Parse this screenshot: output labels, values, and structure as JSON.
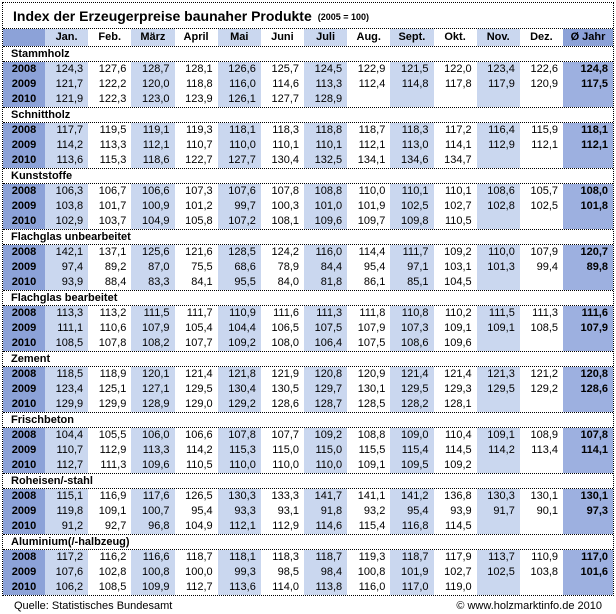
{
  "header": {
    "title": "Index der Erzeugerpreise baunaher Produkte",
    "subtitle": "(2005 = 100)"
  },
  "colors": {
    "medium_blue": "#8ca2d8",
    "light_blue": "#cad7ef",
    "avg_blue": "#9db0e0",
    "border": "#000000"
  },
  "chart_data": {
    "type": "table",
    "title": "Index der Erzeugerpreise baunaher Produkte (2005 = 100)",
    "columns": [
      "Jan.",
      "Feb.",
      "März",
      "April",
      "Mai",
      "Juni",
      "Juli",
      "Aug.",
      "Sept.",
      "Okt.",
      "Nov.",
      "Dez.",
      "Ø Jahr"
    ],
    "row_groups": [
      {
        "name": "Stammholz",
        "rows": [
          {
            "year": "2008",
            "values": [
              "124,3",
              "127,6",
              "128,7",
              "128,1",
              "126,6",
              "125,7",
              "124,5",
              "122,9",
              "121,5",
              "122,0",
              "123,4",
              "122,6"
            ],
            "avg": "124,8"
          },
          {
            "year": "2009",
            "values": [
              "121,7",
              "122,2",
              "120,0",
              "118,8",
              "116,0",
              "114,6",
              "113,3",
              "112,4",
              "114,8",
              "117,8",
              "117,9",
              "120,9"
            ],
            "avg": "117,5"
          },
          {
            "year": "2010",
            "values": [
              "121,9",
              "122,3",
              "123,0",
              "123,9",
              "126,1",
              "127,7",
              "128,9",
              "",
              "",
              "",
              "",
              ""
            ],
            "avg": ""
          }
        ]
      },
      {
        "name": "Schnittholz",
        "rows": [
          {
            "year": "2008",
            "values": [
              "117,7",
              "119,5",
              "119,1",
              "119,3",
              "118,1",
              "118,3",
              "118,8",
              "118,7",
              "118,3",
              "117,2",
              "116,4",
              "115,9"
            ],
            "avg": "118,1"
          },
          {
            "year": "2009",
            "values": [
              "114,2",
              "113,3",
              "112,1",
              "110,7",
              "110,0",
              "110,1",
              "110,1",
              "112,1",
              "113,0",
              "114,1",
              "112,9",
              "112,1"
            ],
            "avg": "112,1"
          },
          {
            "year": "2010",
            "values": [
              "113,6",
              "115,3",
              "118,6",
              "122,7",
              "127,7",
              "130,4",
              "132,5",
              "134,1",
              "134,6",
              "134,7",
              "",
              ""
            ],
            "avg": ""
          }
        ]
      },
      {
        "name": "Kunststoffe",
        "rows": [
          {
            "year": "2008",
            "values": [
              "106,3",
              "106,7",
              "106,6",
              "107,3",
              "107,6",
              "107,8",
              "108,8",
              "110,0",
              "110,1",
              "110,1",
              "108,6",
              "105,7"
            ],
            "avg": "108,0"
          },
          {
            "year": "2009",
            "values": [
              "103,8",
              "101,7",
              "100,9",
              "101,2",
              "99,7",
              "100,3",
              "101,0",
              "101,9",
              "102,5",
              "102,7",
              "102,8",
              "102,5"
            ],
            "avg": "101,8"
          },
          {
            "year": "2010",
            "values": [
              "102,9",
              "103,7",
              "104,9",
              "105,8",
              "107,2",
              "108,1",
              "109,6",
              "109,7",
              "109,8",
              "110,5",
              "",
              ""
            ],
            "avg": ""
          }
        ]
      },
      {
        "name": "Flachglas unbearbeitet",
        "rows": [
          {
            "year": "2008",
            "values": [
              "142,1",
              "137,1",
              "125,6",
              "121,6",
              "128,5",
              "124,2",
              "116,0",
              "114,4",
              "111,7",
              "109,2",
              "110,0",
              "107,9"
            ],
            "avg": "120,7"
          },
          {
            "year": "2009",
            "values": [
              "97,4",
              "89,2",
              "87,0",
              "75,5",
              "68,6",
              "78,9",
              "84,4",
              "95,4",
              "97,1",
              "103,1",
              "101,3",
              "99,4"
            ],
            "avg": "89,8"
          },
          {
            "year": "2010",
            "values": [
              "93,9",
              "88,4",
              "83,3",
              "84,1",
              "95,5",
              "84,0",
              "81,8",
              "86,1",
              "85,1",
              "104,5",
              "",
              ""
            ],
            "avg": ""
          }
        ]
      },
      {
        "name": "Flachglas bearbeitet",
        "rows": [
          {
            "year": "2008",
            "values": [
              "113,3",
              "113,2",
              "111,5",
              "111,7",
              "110,9",
              "111,6",
              "111,3",
              "111,8",
              "110,8",
              "110,2",
              "111,5",
              "111,3"
            ],
            "avg": "111,6"
          },
          {
            "year": "2009",
            "values": [
              "111,1",
              "110,6",
              "107,9",
              "105,4",
              "104,4",
              "106,5",
              "107,5",
              "107,9",
              "107,3",
              "109,1",
              "109,1",
              "108,5"
            ],
            "avg": "107,9"
          },
          {
            "year": "2010",
            "values": [
              "108,5",
              "107,8",
              "108,2",
              "107,7",
              "109,2",
              "108,0",
              "106,4",
              "107,5",
              "108,6",
              "109,6",
              "",
              ""
            ],
            "avg": ""
          }
        ]
      },
      {
        "name": "Zement",
        "rows": [
          {
            "year": "2008",
            "values": [
              "118,5",
              "118,9",
              "120,1",
              "121,4",
              "121,8",
              "121,9",
              "120,8",
              "120,9",
              "121,4",
              "121,4",
              "121,3",
              "121,2"
            ],
            "avg": "120,8"
          },
          {
            "year": "2009",
            "values": [
              "123,4",
              "125,1",
              "127,1",
              "129,5",
              "130,4",
              "130,5",
              "129,7",
              "130,1",
              "129,5",
              "129,3",
              "129,5",
              "129,2"
            ],
            "avg": "128,6"
          },
          {
            "year": "2010",
            "values": [
              "129,9",
              "129,9",
              "128,9",
              "129,0",
              "129,2",
              "128,6",
              "128,7",
              "128,5",
              "128,2",
              "128,1",
              "",
              ""
            ],
            "avg": ""
          }
        ]
      },
      {
        "name": "Frischbeton",
        "rows": [
          {
            "year": "2008",
            "values": [
              "104,4",
              "105,5",
              "106,0",
              "106,6",
              "107,8",
              "107,7",
              "109,2",
              "108,8",
              "109,0",
              "110,4",
              "109,1",
              "108,9"
            ],
            "avg": "107,8"
          },
          {
            "year": "2009",
            "values": [
              "110,7",
              "112,9",
              "113,3",
              "114,2",
              "115,3",
              "115,0",
              "115,0",
              "115,5",
              "115,4",
              "114,5",
              "114,2",
              "113,4"
            ],
            "avg": "114,1"
          },
          {
            "year": "2010",
            "values": [
              "112,7",
              "111,3",
              "109,6",
              "110,5",
              "110,0",
              "110,0",
              "110,0",
              "109,1",
              "109,5",
              "109,2",
              "",
              ""
            ],
            "avg": ""
          }
        ]
      },
      {
        "name": "Roheisen/-stahl",
        "rows": [
          {
            "year": "2008",
            "values": [
              "115,1",
              "116,9",
              "117,6",
              "126,5",
              "130,3",
              "133,3",
              "141,7",
              "141,1",
              "141,2",
              "136,8",
              "130,3",
              "130,1"
            ],
            "avg": "130,1"
          },
          {
            "year": "2009",
            "values": [
              "119,8",
              "109,1",
              "100,7",
              "95,4",
              "93,3",
              "93,1",
              "91,8",
              "93,2",
              "95,4",
              "93,9",
              "91,7",
              "90,1"
            ],
            "avg": "97,3"
          },
          {
            "year": "2010",
            "values": [
              "91,2",
              "92,7",
              "96,8",
              "104,9",
              "112,1",
              "112,9",
              "114,6",
              "115,4",
              "116,8",
              "114,5",
              "",
              ""
            ],
            "avg": ""
          }
        ]
      },
      {
        "name": "Aluminium(/-halbzeug)",
        "rows": [
          {
            "year": "2008",
            "values": [
              "117,2",
              "116,2",
              "116,6",
              "118,7",
              "118,1",
              "118,3",
              "118,7",
              "119,3",
              "118,7",
              "117,9",
              "113,7",
              "110,9"
            ],
            "avg": "117,0"
          },
          {
            "year": "2009",
            "values": [
              "107,6",
              "102,8",
              "100,8",
              "100,0",
              "99,3",
              "98,5",
              "98,4",
              "100,8",
              "101,9",
              "102,7",
              "102,5",
              "103,8"
            ],
            "avg": "101,6"
          },
          {
            "year": "2010",
            "values": [
              "106,2",
              "108,5",
              "109,9",
              "112,7",
              "113,6",
              "114,0",
              "113,8",
              "116,0",
              "117,0",
              "119,0",
              "",
              ""
            ],
            "avg": ""
          }
        ]
      }
    ]
  },
  "footer": {
    "source": "Quelle: Statistisches Bundesamt",
    "copyright": "© www.holzmarktinfo.de 2010"
  }
}
